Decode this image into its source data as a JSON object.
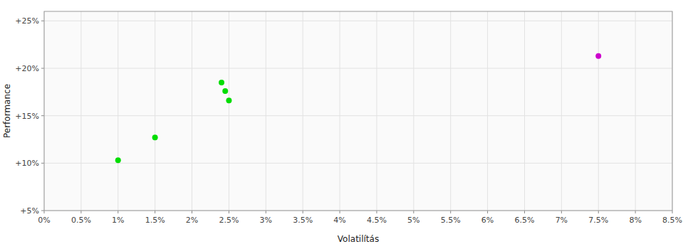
{
  "chart_data": {
    "type": "scatter",
    "xlabel": "Volatilítás",
    "ylabel": "Performance",
    "xlim": [
      0.0,
      0.085
    ],
    "ylim": [
      0.05,
      0.26
    ],
    "xticks": [
      {
        "value": 0.0,
        "label": "0%"
      },
      {
        "value": 0.005,
        "label": "0.5%"
      },
      {
        "value": 0.01,
        "label": "1%"
      },
      {
        "value": 0.015,
        "label": "1.5%"
      },
      {
        "value": 0.02,
        "label": "2%"
      },
      {
        "value": 0.025,
        "label": "2.5%"
      },
      {
        "value": 0.03,
        "label": "3%"
      },
      {
        "value": 0.035,
        "label": "3.5%"
      },
      {
        "value": 0.04,
        "label": "4%"
      },
      {
        "value": 0.045,
        "label": "4.5%"
      },
      {
        "value": 0.05,
        "label": "5%"
      },
      {
        "value": 0.055,
        "label": "5.5%"
      },
      {
        "value": 0.06,
        "label": "6%"
      },
      {
        "value": 0.065,
        "label": "6.5%"
      },
      {
        "value": 0.07,
        "label": "7%"
      },
      {
        "value": 0.075,
        "label": "7.5%"
      },
      {
        "value": 0.08,
        "label": "8%"
      },
      {
        "value": 0.085,
        "label": "8.5%"
      }
    ],
    "yticks": [
      {
        "value": 0.05,
        "label": "+5%"
      },
      {
        "value": 0.1,
        "label": "+10%"
      },
      {
        "value": 0.15,
        "label": "+15%"
      },
      {
        "value": 0.2,
        "label": "+20%"
      },
      {
        "value": 0.25,
        "label": "+25%"
      }
    ],
    "grid": true,
    "series": [
      {
        "color": "#00dd00",
        "x": [
          0.01,
          0.015,
          0.024,
          0.0245,
          0.025
        ],
        "values": [
          0.103,
          0.127,
          0.185,
          0.176,
          0.166
        ]
      },
      {
        "color": "#cc00cc",
        "x": [
          0.075
        ],
        "values": [
          0.213
        ]
      }
    ]
  }
}
